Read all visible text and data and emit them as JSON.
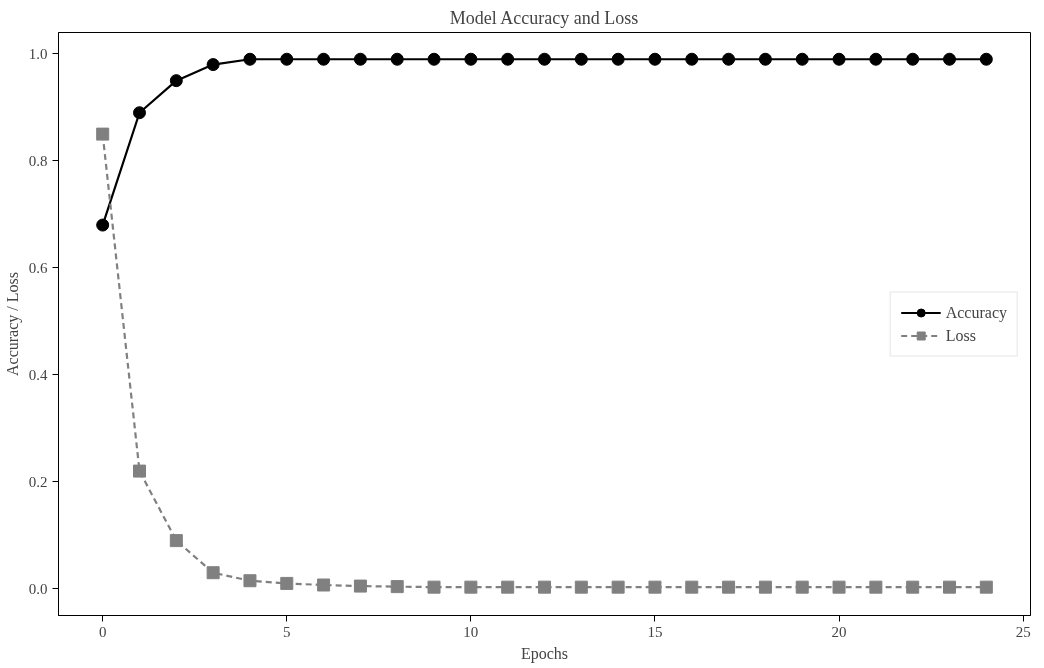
{
  "chart_data": {
    "type": "line",
    "title": "Model Accuracy and Loss",
    "xlabel": "Epochs",
    "ylabel": "Accuracy / Loss",
    "x": [
      0,
      1,
      2,
      3,
      4,
      5,
      6,
      7,
      8,
      9,
      10,
      11,
      12,
      13,
      14,
      15,
      16,
      17,
      18,
      19,
      20,
      21,
      22,
      23,
      24
    ],
    "series": [
      {
        "name": "Accuracy",
        "color": "#000000",
        "marker": "circle",
        "line_style": "solid",
        "values": [
          0.68,
          0.89,
          0.95,
          0.98,
          0.99,
          0.99,
          0.99,
          0.99,
          0.99,
          0.99,
          0.99,
          0.99,
          0.99,
          0.99,
          0.99,
          0.99,
          0.99,
          0.99,
          0.99,
          0.99,
          0.99,
          0.99,
          0.99,
          0.99,
          0.99
        ]
      },
      {
        "name": "Loss",
        "color": "#808080",
        "marker": "square",
        "line_style": "dashed",
        "values": [
          0.85,
          0.22,
          0.09,
          0.03,
          0.015,
          0.01,
          0.007,
          0.005,
          0.004,
          0.003,
          0.003,
          0.003,
          0.003,
          0.003,
          0.003,
          0.003,
          0.003,
          0.003,
          0.003,
          0.003,
          0.003,
          0.003,
          0.003,
          0.003,
          0.003
        ]
      }
    ],
    "xlim": [
      -1.2,
      25.2
    ],
    "ylim": [
      -0.05,
      1.04
    ],
    "xticks": [
      0,
      5,
      10,
      15,
      20,
      25
    ],
    "yticks": [
      {
        "value": 0,
        "label": "0.0"
      },
      {
        "value": 0.2,
        "label": "0.2"
      },
      {
        "value": 0.4,
        "label": "0.4"
      },
      {
        "value": 0.6,
        "label": "0.6"
      },
      {
        "value": 0.8,
        "label": "0.8"
      },
      {
        "value": 1,
        "label": "1.0"
      }
    ],
    "grid": false,
    "legend": "right"
  }
}
